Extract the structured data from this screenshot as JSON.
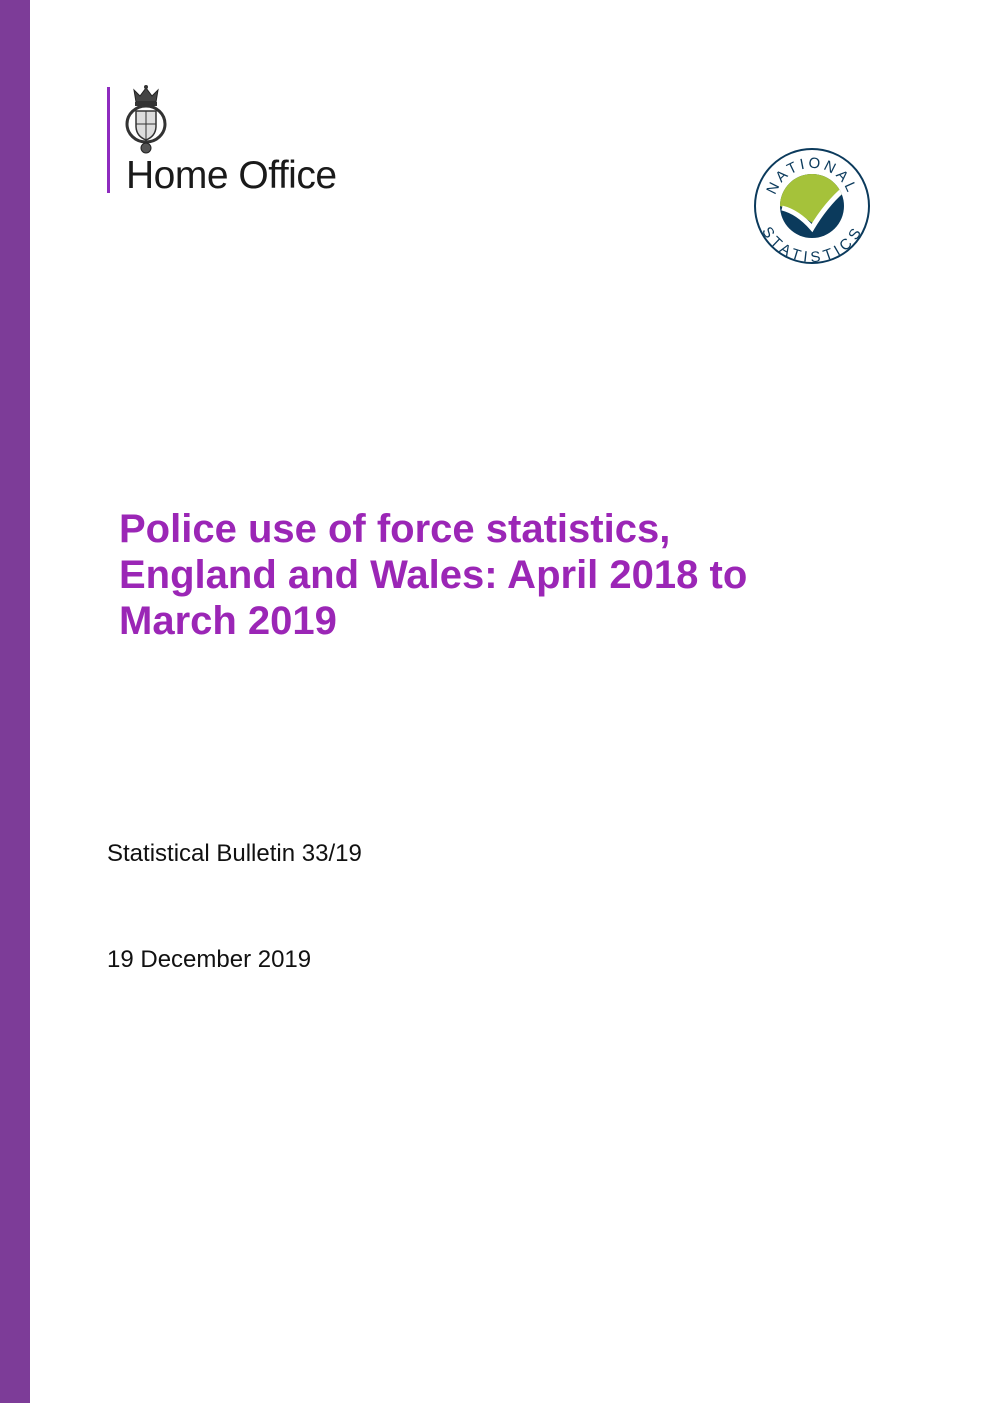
{
  "branding": {
    "organisation": "Home Office",
    "badge_text_top": "NATIONAL",
    "badge_text_bottom": "STATISTICS"
  },
  "document": {
    "title_lines": [
      "Police use of force statistics,",
      "England and Wales: April 2018 to",
      "March 2019"
    ],
    "series": "Statistical Bulletin 33/19",
    "date": "19 December 2019"
  },
  "colors": {
    "sidebar": "#7d3c98",
    "title": "#9b26b6",
    "badge_navy": "#0b3a5c",
    "badge_green": "#a5c23a"
  }
}
